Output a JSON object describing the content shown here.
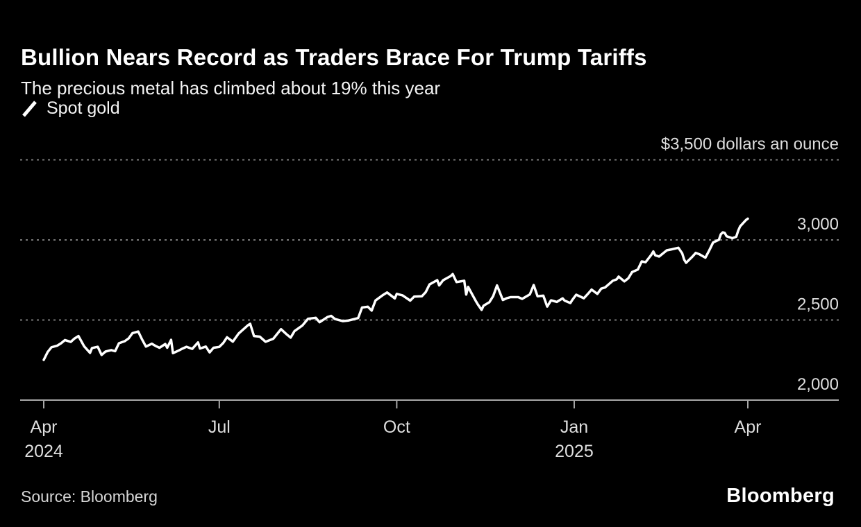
{
  "header": {
    "title": "Bullion Nears Record as Traders Brace For Trump Tariffs",
    "subtitle": "The precious metal has climbed about 19% this year"
  },
  "legend": {
    "label": "Spot gold",
    "marker": "slash-line"
  },
  "source": {
    "label": "Source: Bloomberg"
  },
  "branding": {
    "logo_text": "Bloomberg"
  },
  "colors": {
    "background": "#000000",
    "line": "#ffffff",
    "grid": "#7a7a7a",
    "axis": "#a8a8a8",
    "label": "#dedede",
    "title": "#ffffff"
  },
  "chart_data": {
    "type": "line",
    "title": "Bullion Nears Record as Traders Brace For Trump Tariffs",
    "subtitle": "The precious metal has climbed about 19% this year",
    "unit": "dollars an ounce",
    "grid": "horizontal-dashed",
    "legend_position": "top-left",
    "x_origin": "2024-04-01",
    "x_end": "2025-04-01",
    "ylim": [
      2000,
      3500
    ],
    "y_ticks": [
      {
        "value": 2000,
        "label": "2,000"
      },
      {
        "value": 2500,
        "label": "2,500"
      },
      {
        "value": 3000,
        "label": "3,000"
      },
      {
        "value": 3500,
        "label": "$3,500 dollars an ounce"
      }
    ],
    "x_ticks": [
      {
        "date": "2024-04-01",
        "label": "Apr",
        "sublabel": "2024"
      },
      {
        "date": "2024-07-01",
        "label": "Jul",
        "sublabel": ""
      },
      {
        "date": "2024-10-01",
        "label": "Oct",
        "sublabel": ""
      },
      {
        "date": "2025-01-01",
        "label": "Jan",
        "sublabel": "2025"
      },
      {
        "date": "2025-04-01",
        "label": "Apr",
        "sublabel": ""
      }
    ],
    "series": [
      {
        "name": "Spot gold",
        "color": "#ffffff",
        "points": [
          [
            "2024-04-01",
            2251
          ],
          [
            "2024-04-03",
            2300
          ],
          [
            "2024-04-05",
            2330
          ],
          [
            "2024-04-08",
            2340
          ],
          [
            "2024-04-10",
            2355
          ],
          [
            "2024-04-12",
            2375
          ],
          [
            "2024-04-15",
            2363
          ],
          [
            "2024-04-17",
            2385
          ],
          [
            "2024-04-19",
            2400
          ],
          [
            "2024-04-22",
            2335
          ],
          [
            "2024-04-25",
            2295
          ],
          [
            "2024-04-26",
            2325
          ],
          [
            "2024-04-29",
            2333
          ],
          [
            "2024-05-01",
            2282
          ],
          [
            "2024-05-03",
            2303
          ],
          [
            "2024-05-06",
            2312
          ],
          [
            "2024-05-08",
            2305
          ],
          [
            "2024-05-10",
            2355
          ],
          [
            "2024-05-13",
            2368
          ],
          [
            "2024-05-15",
            2385
          ],
          [
            "2024-05-17",
            2418
          ],
          [
            "2024-05-20",
            2428
          ],
          [
            "2024-05-22",
            2378
          ],
          [
            "2024-05-24",
            2334
          ],
          [
            "2024-05-27",
            2352
          ],
          [
            "2024-05-29",
            2338
          ],
          [
            "2024-05-31",
            2327
          ],
          [
            "2024-06-03",
            2350
          ],
          [
            "2024-06-04",
            2327
          ],
          [
            "2024-06-06",
            2376
          ],
          [
            "2024-06-07",
            2293
          ],
          [
            "2024-06-10",
            2310
          ],
          [
            "2024-06-12",
            2322
          ],
          [
            "2024-06-14",
            2333
          ],
          [
            "2024-06-17",
            2320
          ],
          [
            "2024-06-20",
            2360
          ],
          [
            "2024-06-21",
            2322
          ],
          [
            "2024-06-24",
            2334
          ],
          [
            "2024-06-26",
            2298
          ],
          [
            "2024-06-28",
            2327
          ],
          [
            "2024-07-01",
            2332
          ],
          [
            "2024-07-03",
            2356
          ],
          [
            "2024-07-05",
            2392
          ],
          [
            "2024-07-08",
            2365
          ],
          [
            "2024-07-11",
            2415
          ],
          [
            "2024-07-16",
            2469
          ],
          [
            "2024-07-17",
            2476
          ],
          [
            "2024-07-19",
            2400
          ],
          [
            "2024-07-22",
            2396
          ],
          [
            "2024-07-25",
            2364
          ],
          [
            "2024-07-29",
            2383
          ],
          [
            "2024-08-02",
            2443
          ],
          [
            "2024-08-05",
            2410
          ],
          [
            "2024-08-07",
            2390
          ],
          [
            "2024-08-09",
            2431
          ],
          [
            "2024-08-13",
            2465
          ],
          [
            "2024-08-16",
            2508
          ],
          [
            "2024-08-20",
            2514
          ],
          [
            "2024-08-22",
            2486
          ],
          [
            "2024-08-26",
            2518
          ],
          [
            "2024-08-28",
            2526
          ],
          [
            "2024-08-30",
            2506
          ],
          [
            "2024-09-03",
            2493
          ],
          [
            "2024-09-06",
            2497
          ],
          [
            "2024-09-09",
            2506
          ],
          [
            "2024-09-11",
            2512
          ],
          [
            "2024-09-13",
            2578
          ],
          [
            "2024-09-16",
            2583
          ],
          [
            "2024-09-18",
            2559
          ],
          [
            "2024-09-20",
            2622
          ],
          [
            "2024-09-24",
            2657
          ],
          [
            "2024-09-26",
            2672
          ],
          [
            "2024-09-30",
            2635
          ],
          [
            "2024-10-01",
            2663
          ],
          [
            "2024-10-04",
            2654
          ],
          [
            "2024-10-08",
            2621
          ],
          [
            "2024-10-10",
            2646
          ],
          [
            "2024-10-14",
            2648
          ],
          [
            "2024-10-16",
            2674
          ],
          [
            "2024-10-18",
            2722
          ],
          [
            "2024-10-22",
            2749
          ],
          [
            "2024-10-23",
            2716
          ],
          [
            "2024-10-25",
            2748
          ],
          [
            "2024-10-29",
            2775
          ],
          [
            "2024-10-30",
            2787
          ],
          [
            "2024-11-01",
            2737
          ],
          [
            "2024-11-05",
            2745
          ],
          [
            "2024-11-06",
            2659
          ],
          [
            "2024-11-07",
            2707
          ],
          [
            "2024-11-08",
            2684
          ],
          [
            "2024-11-11",
            2618
          ],
          [
            "2024-11-12",
            2598
          ],
          [
            "2024-11-14",
            2563
          ],
          [
            "2024-11-15",
            2589
          ],
          [
            "2024-11-18",
            2611
          ],
          [
            "2024-11-20",
            2650
          ],
          [
            "2024-11-22",
            2716
          ],
          [
            "2024-11-25",
            2625
          ],
          [
            "2024-11-27",
            2636
          ],
          [
            "2024-11-29",
            2643
          ],
          [
            "2024-12-03",
            2643
          ],
          [
            "2024-12-05",
            2632
          ],
          [
            "2024-12-09",
            2660
          ],
          [
            "2024-12-11",
            2718
          ],
          [
            "2024-12-13",
            2648
          ],
          [
            "2024-12-16",
            2652
          ],
          [
            "2024-12-18",
            2584
          ],
          [
            "2024-12-20",
            2623
          ],
          [
            "2024-12-23",
            2613
          ],
          [
            "2024-12-26",
            2635
          ],
          [
            "2024-12-27",
            2621
          ],
          [
            "2024-12-30",
            2606
          ],
          [
            "2024-12-31",
            2625
          ],
          [
            "2025-01-02",
            2658
          ],
          [
            "2025-01-06",
            2636
          ],
          [
            "2025-01-08",
            2662
          ],
          [
            "2025-01-10",
            2690
          ],
          [
            "2025-01-13",
            2663
          ],
          [
            "2025-01-15",
            2696
          ],
          [
            "2025-01-17",
            2703
          ],
          [
            "2025-01-21",
            2745
          ],
          [
            "2025-01-23",
            2754
          ],
          [
            "2025-01-24",
            2771
          ],
          [
            "2025-01-27",
            2741
          ],
          [
            "2025-01-29",
            2760
          ],
          [
            "2025-01-31",
            2799
          ],
          [
            "2025-02-03",
            2815
          ],
          [
            "2025-02-05",
            2866
          ],
          [
            "2025-02-07",
            2861
          ],
          [
            "2025-02-10",
            2908
          ],
          [
            "2025-02-11",
            2928
          ],
          [
            "2025-02-12",
            2904
          ],
          [
            "2025-02-14",
            2896
          ],
          [
            "2025-02-18",
            2935
          ],
          [
            "2025-02-20",
            2940
          ],
          [
            "2025-02-24",
            2951
          ],
          [
            "2025-02-26",
            2916
          ],
          [
            "2025-02-27",
            2877
          ],
          [
            "2025-02-28",
            2857
          ],
          [
            "2025-03-03",
            2892
          ],
          [
            "2025-03-05",
            2919
          ],
          [
            "2025-03-07",
            2910
          ],
          [
            "2025-03-10",
            2889
          ],
          [
            "2025-03-12",
            2934
          ],
          [
            "2025-03-14",
            2984
          ],
          [
            "2025-03-17",
            3001
          ],
          [
            "2025-03-18",
            3035
          ],
          [
            "2025-03-19",
            3047
          ],
          [
            "2025-03-20",
            3044
          ],
          [
            "2025-03-21",
            3023
          ],
          [
            "2025-03-24",
            3011
          ],
          [
            "2025-03-26",
            3020
          ],
          [
            "2025-03-27",
            3057
          ],
          [
            "2025-03-28",
            3085
          ],
          [
            "2025-03-31",
            3124
          ],
          [
            "2025-04-01",
            3133
          ]
        ]
      }
    ]
  }
}
